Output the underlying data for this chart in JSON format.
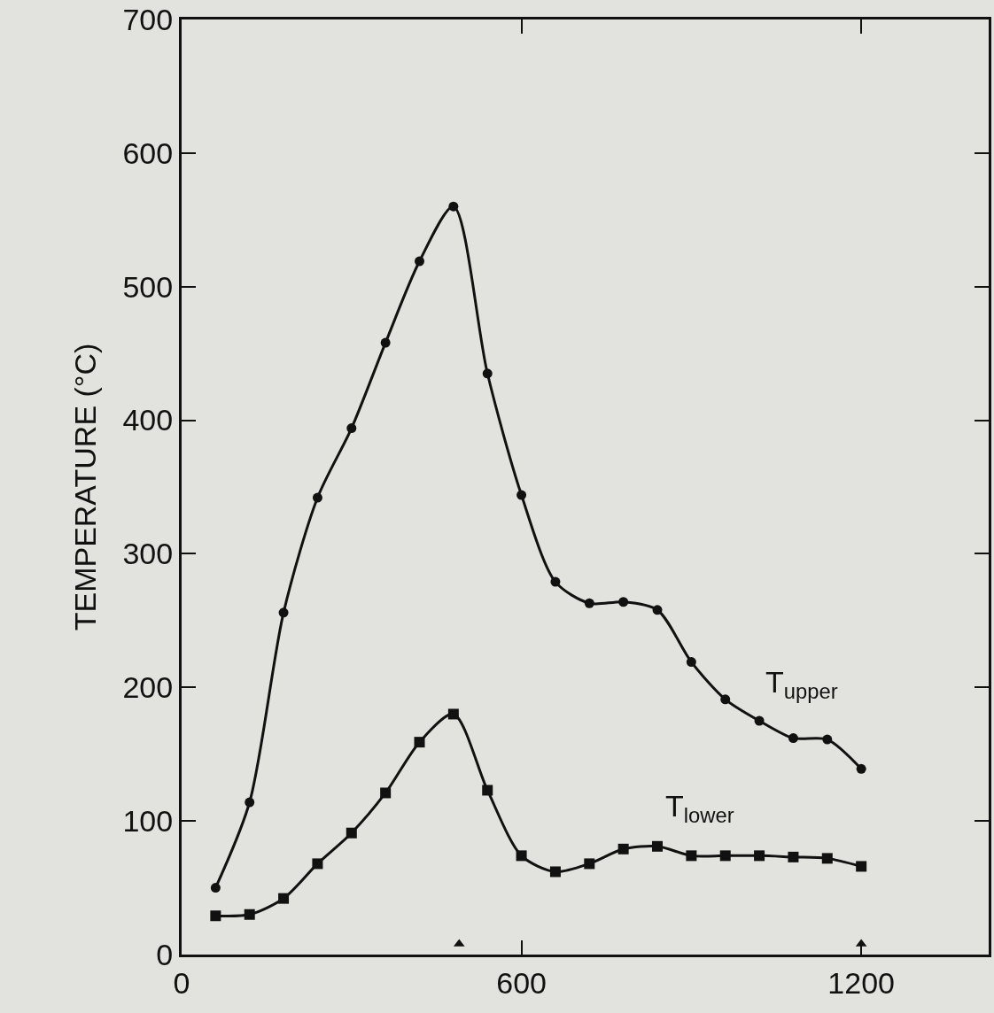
{
  "chart_data": {
    "type": "line",
    "ylabel": "TEMPERATURE (°C)",
    "x": [
      60,
      120,
      180,
      240,
      300,
      360,
      420,
      480,
      540,
      600,
      660,
      720,
      780,
      840,
      900,
      960,
      1020,
      1080,
      1140,
      1200
    ],
    "series": [
      {
        "name": "T$_{upper}$",
        "color": "#111111",
        "marker": "circle",
        "values": [
          50,
          114,
          256,
          342,
          394,
          458,
          519,
          560,
          435,
          344,
          279,
          263,
          264,
          258,
          219,
          191,
          175,
          162,
          161,
          139
        ]
      },
      {
        "name": "T$_{lower}$",
        "color": "#111111",
        "marker": "square",
        "values": [
          29,
          30,
          42,
          68,
          91,
          121,
          159,
          180,
          123,
          74,
          62,
          68,
          79,
          81,
          74,
          74,
          74,
          73,
          72,
          66
        ]
      },
      {
        "type": "scatter",
        "color": "#111111",
        "marker": "triangle",
        "x": [
          490,
          1200
        ],
        "values": [
          8,
          8
        ]
      }
    ],
    "xlim": [
      0,
      1425
    ],
    "xticks": [
      0,
      600,
      1200
    ],
    "ylim": [
      0,
      700
    ],
    "yticks": [
      0,
      100,
      200,
      300,
      400,
      500,
      600,
      700
    ],
    "grid": false,
    "line_style": "solid"
  }
}
